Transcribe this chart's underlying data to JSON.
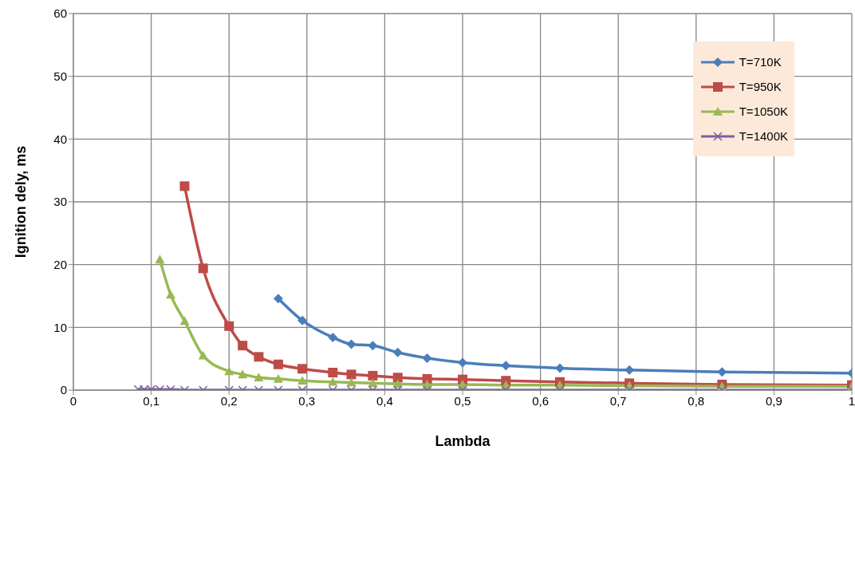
{
  "chart_data": {
    "type": "line",
    "xlabel": "Lambda",
    "ylabel": "Ignition dely, ms",
    "xlim": [
      0,
      1
    ],
    "xticks": [
      0,
      {
        "value": 0.1,
        "label": "0,1"
      },
      {
        "value": 0.2,
        "label": "0,2"
      },
      {
        "value": 0.3,
        "label": "0,3"
      },
      {
        "value": 0.4,
        "label": "0,4"
      },
      {
        "value": 0.5,
        "label": "0,5"
      },
      {
        "value": 0.6,
        "label": "0,6"
      },
      {
        "value": 0.7,
        "label": "0,7"
      },
      {
        "value": 0.8,
        "label": "0,8"
      },
      {
        "value": 0.9,
        "label": "0,9"
      },
      1
    ],
    "ylim": [
      0,
      60
    ],
    "yticks": [
      0,
      10,
      20,
      30,
      40,
      50,
      60
    ],
    "grid": true,
    "legend": "top right",
    "line_style": "solid",
    "series": [
      {
        "name": "T=710K",
        "color": "#4a7ebb",
        "marker": "diamond",
        "x": [
          0.2632,
          0.2941,
          0.3333,
          0.3571,
          0.3846,
          0.4167,
          0.4545,
          0.5,
          0.5556,
          0.625,
          0.7143,
          0.8333,
          1
        ],
        "values": [
          14.6,
          11.1,
          8.4,
          7.3,
          7.1,
          6.0,
          5.1,
          4.4,
          3.9,
          3.5,
          3.2,
          2.9,
          2.7
        ]
      },
      {
        "name": "T=950K",
        "color": "#be4b48",
        "marker": "square",
        "x": [
          0.1429,
          0.1667,
          0.2,
          0.2174,
          0.2381,
          0.2632,
          0.2941,
          0.3333,
          0.3571,
          0.3846,
          0.4167,
          0.4545,
          0.5,
          0.5556,
          0.625,
          0.7143,
          0.8333,
          1
        ],
        "values": [
          32.5,
          19.4,
          10.2,
          7.1,
          5.3,
          4.1,
          3.4,
          2.8,
          2.5,
          2.3,
          2.0,
          1.8,
          1.7,
          1.5,
          1.3,
          1.1,
          0.9,
          0.8
        ]
      },
      {
        "name": "T=1050K",
        "color": "#98b954",
        "marker": "triangle",
        "x": [
          0.1111,
          0.125,
          0.1429,
          0.1667,
          0.2,
          0.2174,
          0.2381,
          0.2632,
          0.2941,
          0.3333,
          0.3571,
          0.3846,
          0.4167,
          0.4545,
          0.5,
          0.5556,
          0.625,
          0.7143,
          0.8333,
          1
        ],
        "values": [
          20.8,
          15.2,
          11.0,
          5.5,
          3.0,
          2.5,
          2.0,
          1.8,
          1.5,
          1.3,
          1.2,
          1.1,
          1.0,
          0.9,
          0.9,
          0.8,
          0.8,
          0.7,
          0.6,
          0.6
        ]
      },
      {
        "name": "T=1400K",
        "color": "#7d60a0",
        "marker": "cross",
        "x": [
          0.0833,
          0.0909,
          0.1,
          0.1111,
          0.125,
          0.1429,
          0.1667,
          0.2,
          0.2174,
          0.2381,
          0.2632,
          0.2941,
          0.3333,
          0.3571,
          0.3846,
          0.4167,
          0.4545,
          0.5,
          0.5556,
          0.625,
          0.7143,
          0.8333,
          1
        ],
        "values": [
          0.1,
          0.1,
          0.1,
          0.1,
          0.1,
          0,
          0,
          0,
          0,
          0,
          0,
          0,
          0,
          0,
          0,
          0,
          0,
          0,
          0,
          0,
          0,
          0,
          0
        ]
      }
    ]
  }
}
